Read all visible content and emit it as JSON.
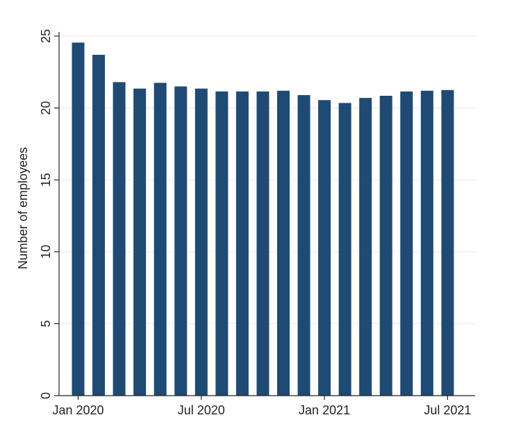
{
  "chart_data": {
    "type": "bar",
    "title": "",
    "xlabel": "",
    "ylabel": "Number of employees",
    "ylim": [
      0,
      25
    ],
    "yticks": [
      0,
      5,
      10,
      15,
      20,
      25
    ],
    "categories": [
      "2020-01",
      "2020-02",
      "2020-03",
      "2020-04",
      "2020-05",
      "2020-06",
      "2020-07",
      "2020-08",
      "2020-09",
      "2020-10",
      "2020-11",
      "2020-12",
      "2021-01",
      "2021-02",
      "2021-03",
      "2021-04",
      "2021-05",
      "2021-06",
      "2021-07"
    ],
    "values": [
      24.55,
      23.7,
      21.8,
      21.35,
      21.75,
      21.5,
      21.35,
      21.15,
      21.15,
      21.15,
      21.2,
      20.9,
      20.55,
      20.35,
      20.7,
      20.85,
      21.15,
      21.2,
      21.25
    ],
    "xtick_labels": [
      "Jan 2020",
      "Jul 2020",
      "Jan 2021",
      "Jul 2021"
    ],
    "xtick_categories": [
      "2020-01",
      "2020-07",
      "2021-01",
      "2021-07"
    ],
    "grid": true,
    "colors": {
      "bar": "#1f4a73",
      "grid": "#e6eef3",
      "axis": "#222222"
    }
  }
}
